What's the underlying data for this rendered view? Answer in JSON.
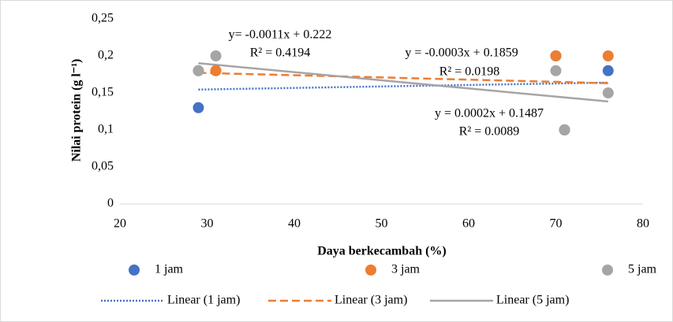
{
  "chart_data": {
    "type": "scatter",
    "x_label": "Daya berkecambah (%)",
    "y_label": "Nilai protein (g l⁻¹)",
    "xlim": [
      20,
      80
    ],
    "xticks": [
      20,
      30,
      40,
      50,
      60,
      70,
      80
    ],
    "ylim": [
      0,
      0.25
    ],
    "yticks": [
      0,
      {
        "value": 0.05,
        "label": "0,05"
      },
      {
        "value": 0.1,
        "label": "0,1"
      },
      {
        "value": 0.15,
        "label": "0,15"
      },
      {
        "value": 0.2,
        "label": "0,2"
      },
      {
        "value": 0.25,
        "label": "0,25"
      }
    ],
    "grid": false,
    "series": [
      {
        "name": "1 jam",
        "color": "#4472c4",
        "x": [
          29,
          31,
          70,
          71,
          76
        ],
        "values": [
          0.13,
          0.18,
          0.2,
          0.1,
          0.18
        ],
        "trendline": {
          "name": "Linear (1 jam)",
          "style": "dotted",
          "slope": 0.0002,
          "intercept": 0.1487,
          "xrange": [
            29,
            76
          ],
          "equation": "y = 0.0002x + 0.1487",
          "r2": 0.0089,
          "r2_label": "R² = 0.0089"
        }
      },
      {
        "name": "3 jam",
        "color": "#ed7d31",
        "x": [
          29,
          31,
          70,
          71,
          76
        ],
        "values": [
          0.18,
          0.18,
          0.2,
          0.1,
          0.2
        ],
        "trendline": {
          "name": "Linear (3 jam)",
          "style": "dashed",
          "slope": -0.0003,
          "intercept": 0.1859,
          "xrange": [
            29,
            76
          ],
          "equation": "y = -0.0003x + 0.1859",
          "r2": 0.0198,
          "r2_label": "R² = 0.0198"
        }
      },
      {
        "name": "5 jam",
        "color": "#a5a5a5",
        "x": [
          29,
          31,
          70,
          71,
          76
        ],
        "values": [
          0.18,
          0.2,
          0.18,
          0.1,
          0.15
        ],
        "trendline": {
          "name": "Linear (5 jam)",
          "style": "solid",
          "slope": -0.0011,
          "intercept": 0.222,
          "xrange": [
            29,
            76
          ],
          "equation": "y= -0.0011x + 0.222",
          "r2": 0.4194,
          "r2_label": "R² = 0.4194"
        }
      }
    ]
  }
}
